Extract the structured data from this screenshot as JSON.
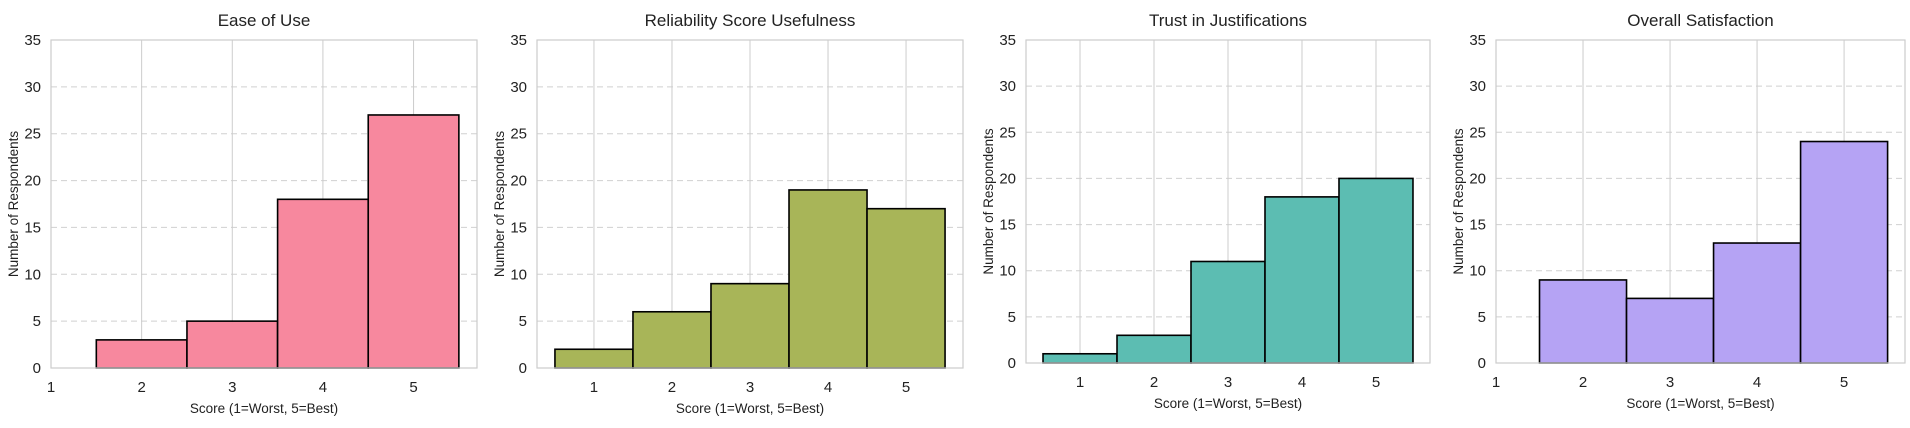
{
  "chart_data": [
    {
      "type": "bar",
      "title": "Ease of Use",
      "xlabel": "Score (1=Worst, 5=Best)",
      "ylabel": "Number of Respondents",
      "categories": [
        2,
        3,
        4,
        5
      ],
      "values": [
        3,
        5,
        18,
        27
      ],
      "x_ticks": [
        1,
        2,
        3,
        4,
        5
      ],
      "xlim": [
        1,
        5.7
      ],
      "ylim": [
        0,
        35
      ],
      "y_ticks": [
        0,
        5,
        10,
        15,
        20,
        25,
        30,
        35
      ],
      "color": "#f7889e",
      "grid": true,
      "legend": "none"
    },
    {
      "type": "bar",
      "title": "Reliability Score Usefulness",
      "xlabel": "Score (1=Worst, 5=Best)",
      "ylabel": "Number of Respondents",
      "categories": [
        1,
        2,
        3,
        4,
        5
      ],
      "values": [
        2,
        6,
        9,
        19,
        17
      ],
      "x_ticks": [
        1,
        2,
        3,
        4,
        5
      ],
      "xlim": [
        0.27,
        5.73
      ],
      "ylim": [
        0,
        35
      ],
      "y_ticks": [
        0,
        5,
        10,
        15,
        20,
        25,
        30,
        35
      ],
      "color": "#a8b558",
      "grid": true,
      "legend": "none"
    },
    {
      "type": "bar",
      "title": "Trust in Justifications",
      "xlabel": "Score (1=Worst, 5=Best)",
      "ylabel": "Number of Respondents",
      "categories": [
        1,
        2,
        3,
        4,
        5
      ],
      "values": [
        1,
        3,
        11,
        18,
        20
      ],
      "x_ticks": [
        1,
        2,
        3,
        4,
        5
      ],
      "xlim": [
        0.27,
        5.73
      ],
      "ylim": [
        0,
        35
      ],
      "y_ticks": [
        0,
        5,
        10,
        15,
        20,
        25,
        30,
        35
      ],
      "color": "#5cbdb2",
      "grid": true,
      "legend": "none"
    },
    {
      "type": "bar",
      "title": "Overall Satisfaction",
      "xlabel": "Score (1=Worst, 5=Best)",
      "ylabel": "Number of Respondents",
      "categories": [
        2,
        3,
        4,
        5
      ],
      "values": [
        9,
        7,
        13,
        24
      ],
      "x_ticks": [
        1,
        2,
        3,
        4,
        5
      ],
      "xlim": [
        1,
        5.7
      ],
      "ylim": [
        0,
        35
      ],
      "y_ticks": [
        0,
        5,
        10,
        15,
        20,
        25,
        30,
        35
      ],
      "color": "#b5a3f4",
      "grid": true,
      "legend": "none"
    }
  ]
}
